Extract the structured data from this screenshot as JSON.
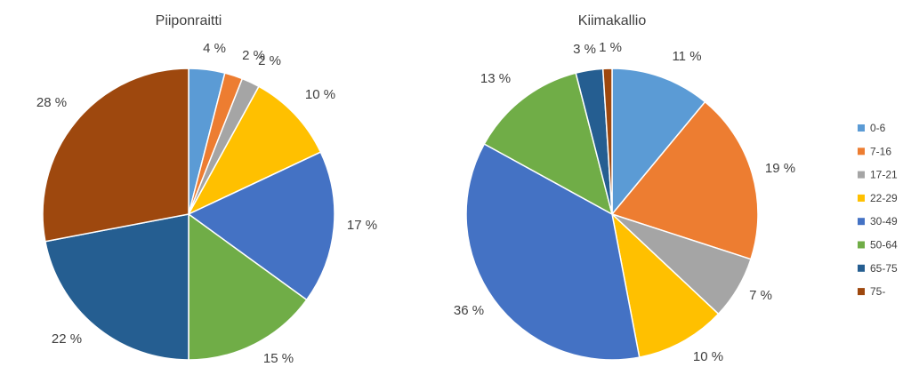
{
  "chart_data": [
    {
      "type": "pie",
      "title": "Piiponraitti",
      "categories": [
        "0-6",
        "7-16",
        "17-21",
        "22-29",
        "30-49",
        "50-64",
        "65-75",
        "75-"
      ],
      "values": [
        4,
        2,
        2,
        10,
        17,
        15,
        22,
        28
      ],
      "labels": [
        "4 %",
        "2 %",
        "2 %",
        "10 %",
        "17 %",
        "15 %",
        "22 %",
        "28 %"
      ],
      "legend": "right"
    },
    {
      "type": "pie",
      "title": "Kiimakallio",
      "categories": [
        "0-6",
        "7-16",
        "17-21",
        "22-29",
        "30-49",
        "50-64",
        "65-75",
        "75-"
      ],
      "values": [
        11,
        19,
        7,
        10,
        36,
        13,
        3,
        1
      ],
      "labels": [
        "11 %",
        "19 %",
        "7 %",
        "10 %",
        "36 %",
        "13 %",
        "3 %",
        "1 %"
      ],
      "legend": "right"
    }
  ],
  "legend": {
    "items": [
      "0-6",
      "7-16",
      "17-21",
      "22-29",
      "30-49",
      "50-64",
      "65-75",
      "75-"
    ]
  },
  "colors": [
    "#5b9bd5",
    "#ed7d31",
    "#a5a5a5",
    "#ffc000",
    "#4472c4",
    "#70ad47",
    "#255e91",
    "#9e480e"
  ]
}
